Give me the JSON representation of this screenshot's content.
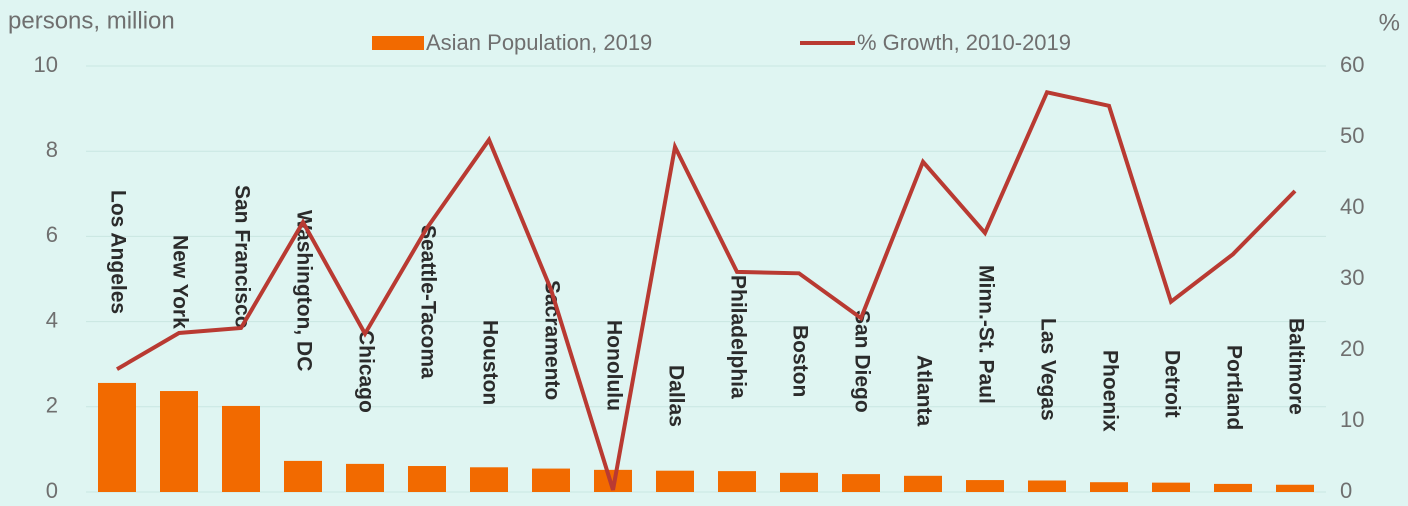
{
  "chart_data": {
    "type": "bar_line",
    "y_axis_title": "persons, million",
    "y2_axis_title": "%",
    "categories": [
      "Los Angeles",
      "New York",
      "San Francisco",
      "Washington, DC",
      "Chicago",
      "Seattle-Tacoma",
      "Houston",
      "Sacramento",
      "Honolulu",
      "Dallas",
      "Philadelphia",
      "Boston",
      "San Diego",
      "Atlanta",
      "Minn.-St. Paul",
      "Las Vegas",
      "Phoenix",
      "Detroit",
      "Portland",
      "Baltimore"
    ],
    "series": [
      {
        "name": "Asian Population, 2019",
        "type": "bar",
        "color": "#f26a00",
        "values": [
          2.56,
          2.37,
          2.02,
          0.73,
          0.66,
          0.61,
          0.58,
          0.55,
          0.52,
          0.5,
          0.49,
          0.45,
          0.42,
          0.38,
          0.28,
          0.27,
          0.23,
          0.22,
          0.19,
          0.17
        ]
      },
      {
        "name": "% Growth, 2010-2019",
        "type": "line",
        "axis": "y2",
        "color": "#b93a32",
        "values": [
          17.3,
          22.4,
          23.1,
          38.0,
          22.3,
          37.2,
          49.6,
          28.5,
          0.3,
          48.6,
          31.0,
          30.8,
          24.5,
          46.5,
          36.5,
          56.3,
          54.4,
          26.8,
          33.5,
          42.4
        ]
      }
    ],
    "ylim": [
      0,
      10
    ],
    "yticks": [
      0,
      2,
      4,
      6,
      8,
      10
    ],
    "y2lim": [
      0,
      60
    ],
    "y2ticks": [
      0,
      10,
      20,
      30,
      40,
      50,
      60
    ],
    "grid": true
  }
}
